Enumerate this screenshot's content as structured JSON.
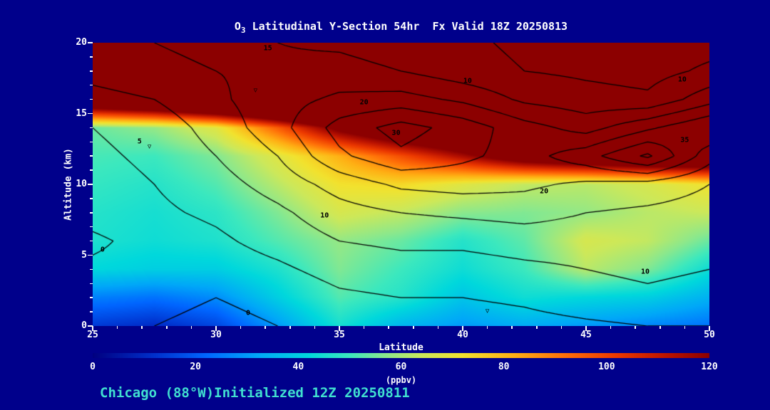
{
  "title": {
    "element": "O",
    "subscript": "3",
    "rest": " Latitudinal Y-Section 54hr  Fx Valid 18Z 20250813"
  },
  "axes": {
    "x_label": "Latitude",
    "y_label": "Altitude (km)",
    "x_range": [
      25,
      50
    ],
    "y_range": [
      0,
      20
    ],
    "x_ticks": [
      25,
      30,
      35,
      40,
      45,
      50
    ],
    "y_ticks": [
      0,
      5,
      10,
      15,
      20
    ],
    "x_minor_step": 1,
    "y_minor_step": 1
  },
  "colorbar": {
    "label": "(ppbv)",
    "range": [
      0,
      120
    ],
    "ticks": [
      0,
      20,
      40,
      60,
      80,
      100,
      120
    ]
  },
  "footer": {
    "text": "Chicago (88°W)Initialized 12Z 20250811"
  },
  "colors": {
    "background": "#00008B",
    "text": "#FFFFFF",
    "footer_text": "#40E0D0",
    "contour_line": "#000000"
  },
  "chart_data": {
    "type": "heatmap",
    "title": "O3 Latitudinal Y-Section 54hr  Fx Valid 18Z 20250813",
    "xlabel": "Latitude",
    "ylabel": "Altitude (km)",
    "units": "ppbv",
    "value_range_colorbar": [
      0,
      120
    ],
    "x_latitude": [
      25,
      27.5,
      30,
      32.5,
      35,
      37.5,
      40,
      42.5,
      45,
      47.5,
      50
    ],
    "y_altitude_km": [
      0,
      2,
      4,
      6,
      8,
      10,
      12,
      14,
      16,
      18,
      20
    ],
    "ozone_ppbv_rows_bottom_to_top": [
      [
        14,
        11,
        16,
        30,
        45,
        35,
        30,
        33,
        30,
        27,
        24
      ],
      [
        26,
        24,
        28,
        40,
        52,
        47,
        38,
        44,
        42,
        40,
        34
      ],
      [
        42,
        40,
        40,
        46,
        56,
        50,
        44,
        50,
        62,
        56,
        44
      ],
      [
        46,
        44,
        46,
        52,
        58,
        54,
        47,
        53,
        66,
        63,
        54
      ],
      [
        47,
        45,
        48,
        56,
        66,
        63,
        57,
        56,
        58,
        62,
        64
      ],
      [
        49,
        47,
        52,
        62,
        72,
        74,
        68,
        63,
        62,
        66,
        72
      ],
      [
        51,
        50,
        56,
        68,
        82,
        98,
        115,
        135,
        145,
        152,
        152
      ],
      [
        54,
        58,
        68,
        95,
        125,
        145,
        155,
        165,
        175,
        178,
        178
      ],
      [
        150,
        160,
        175,
        185,
        195,
        200,
        205,
        205,
        205,
        205,
        205
      ],
      [
        240,
        240,
        245,
        245,
        250,
        250,
        250,
        250,
        250,
        250,
        250
      ],
      [
        300,
        300,
        300,
        300,
        300,
        300,
        300,
        300,
        300,
        300,
        300
      ]
    ],
    "colormap": [
      [
        0,
        "#000080"
      ],
      [
        12,
        "#0030CC"
      ],
      [
        22,
        "#0066FF"
      ],
      [
        32,
        "#00A8F8"
      ],
      [
        42,
        "#00D8DC"
      ],
      [
        50,
        "#3CE8BE"
      ],
      [
        57,
        "#8CE88C"
      ],
      [
        64,
        "#CCE85A"
      ],
      [
        72,
        "#F2E22E"
      ],
      [
        82,
        "#FFB014"
      ],
      [
        92,
        "#FF6E08"
      ],
      [
        102,
        "#EC3800"
      ],
      [
        112,
        "#BA1200"
      ],
      [
        120,
        "#8C0000"
      ]
    ],
    "overlay_contours": {
      "levels": [
        0,
        5,
        10,
        15,
        20,
        25,
        30,
        35
      ],
      "grid_rows_bottom_to_top": [
        [
          1,
          0,
          -1,
          0,
          2,
          3,
          2,
          3,
          4,
          5,
          5
        ],
        [
          2,
          1,
          0,
          1,
          4,
          5,
          5,
          6,
          8,
          9,
          8
        ],
        [
          1,
          2,
          2,
          4,
          7,
          8,
          8,
          9,
          10,
          11,
          10
        ],
        [
          -1,
          2,
          4,
          7,
          10,
          11,
          11,
          12,
          12,
          12,
          12
        ],
        [
          2,
          4,
          6,
          9,
          13,
          15,
          16,
          17,
          15,
          14,
          13
        ],
        [
          3,
          5,
          8,
          12,
          17,
          21,
          22,
          21,
          19,
          18,
          15
        ],
        [
          4,
          6,
          10,
          15,
          24,
          29,
          26,
          23,
          28,
          36,
          22
        ],
        [
          5,
          7,
          12,
          18,
          27,
          32,
          28,
          22,
          18,
          24,
          30
        ],
        [
          8,
          10,
          14,
          18,
          21,
          22,
          19,
          14,
          12,
          11,
          18
        ],
        [
          12,
          14,
          15,
          16,
          17,
          15,
          12,
          10,
          9,
          8,
          11
        ],
        [
          14,
          15,
          16,
          15,
          14,
          12,
          11,
          9,
          8,
          7,
          8
        ]
      ],
      "labels": [
        {
          "text": "15",
          "lat": 32.1,
          "alt": 19.6
        },
        {
          "text": "10",
          "lat": 40.2,
          "alt": 17.3
        },
        {
          "text": "10",
          "lat": 48.9,
          "alt": 17.4
        },
        {
          "text": "20",
          "lat": 36.0,
          "alt": 15.8
        },
        {
          "text": "30",
          "lat": 37.3,
          "alt": 13.6
        },
        {
          "text": "5",
          "lat": 26.9,
          "alt": 13.0
        },
        {
          "text": "35",
          "lat": 49.0,
          "alt": 13.1
        },
        {
          "text": "20",
          "lat": 43.3,
          "alt": 9.5
        },
        {
          "text": "10",
          "lat": 34.4,
          "alt": 7.8
        },
        {
          "text": "0",
          "lat": 25.4,
          "alt": 5.4
        },
        {
          "text": "10",
          "lat": 47.4,
          "alt": 3.8
        },
        {
          "text": "0",
          "lat": 31.3,
          "alt": 0.9
        }
      ],
      "markers": [
        {
          "glyph": "▽",
          "lat": 31.6,
          "alt": 16.6
        },
        {
          "glyph": "▽",
          "lat": 27.3,
          "alt": 12.6
        },
        {
          "glyph": "▽",
          "lat": 41.0,
          "alt": 1.0
        }
      ]
    }
  }
}
